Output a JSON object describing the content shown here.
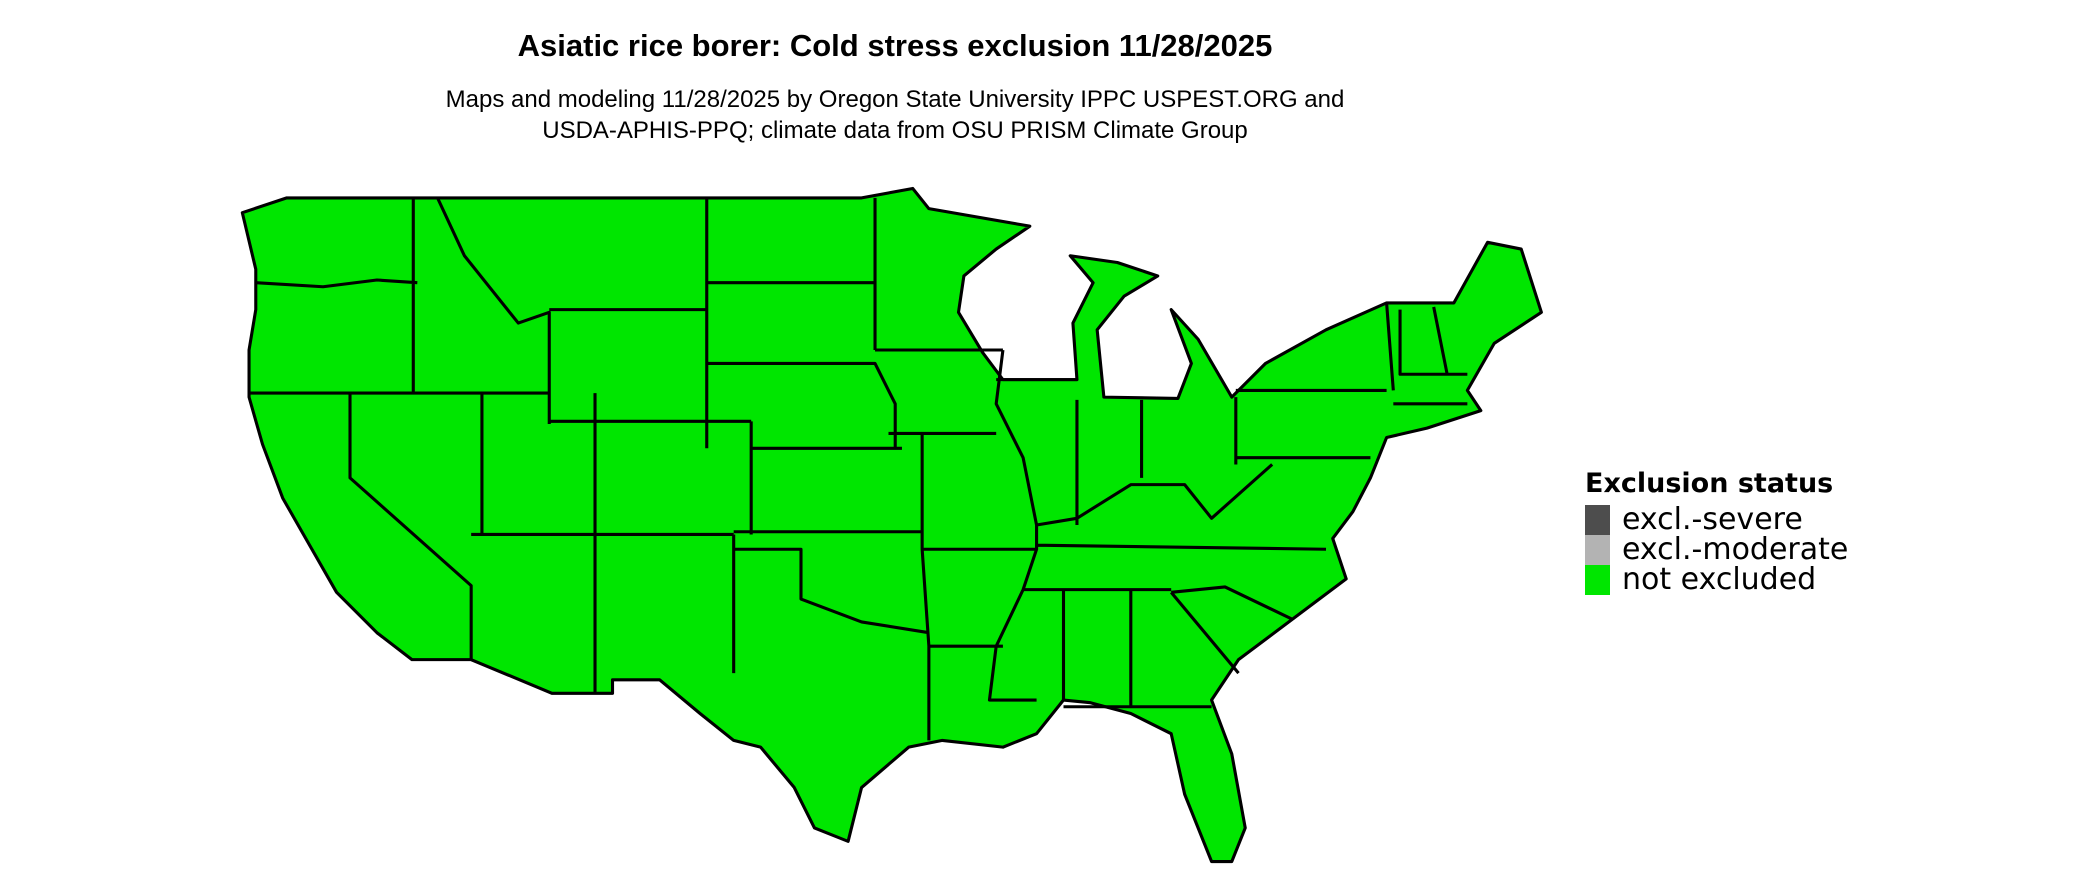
{
  "title": "Asiatic rice borer: Cold stress exclusion 11/28/2025",
  "subtitle_lines": [
    "Maps and modeling 11/28/2025 by Oregon State University IPPC USPEST.ORG and",
    "USDA-APHIS-PPQ; climate data from OSU PRISM Climate Group"
  ],
  "map": {
    "region": "Contiguous United States",
    "fill_status": "not excluded",
    "boundary_color": "#000000"
  },
  "legend": {
    "title": "Exclusion status",
    "items": [
      {
        "label": "excl.-severe",
        "color": "#4d4d4d"
      },
      {
        "label": "excl.-moderate",
        "color": "#b3b3b3"
      },
      {
        "label": "not excluded",
        "color": "#00e600"
      }
    ]
  }
}
